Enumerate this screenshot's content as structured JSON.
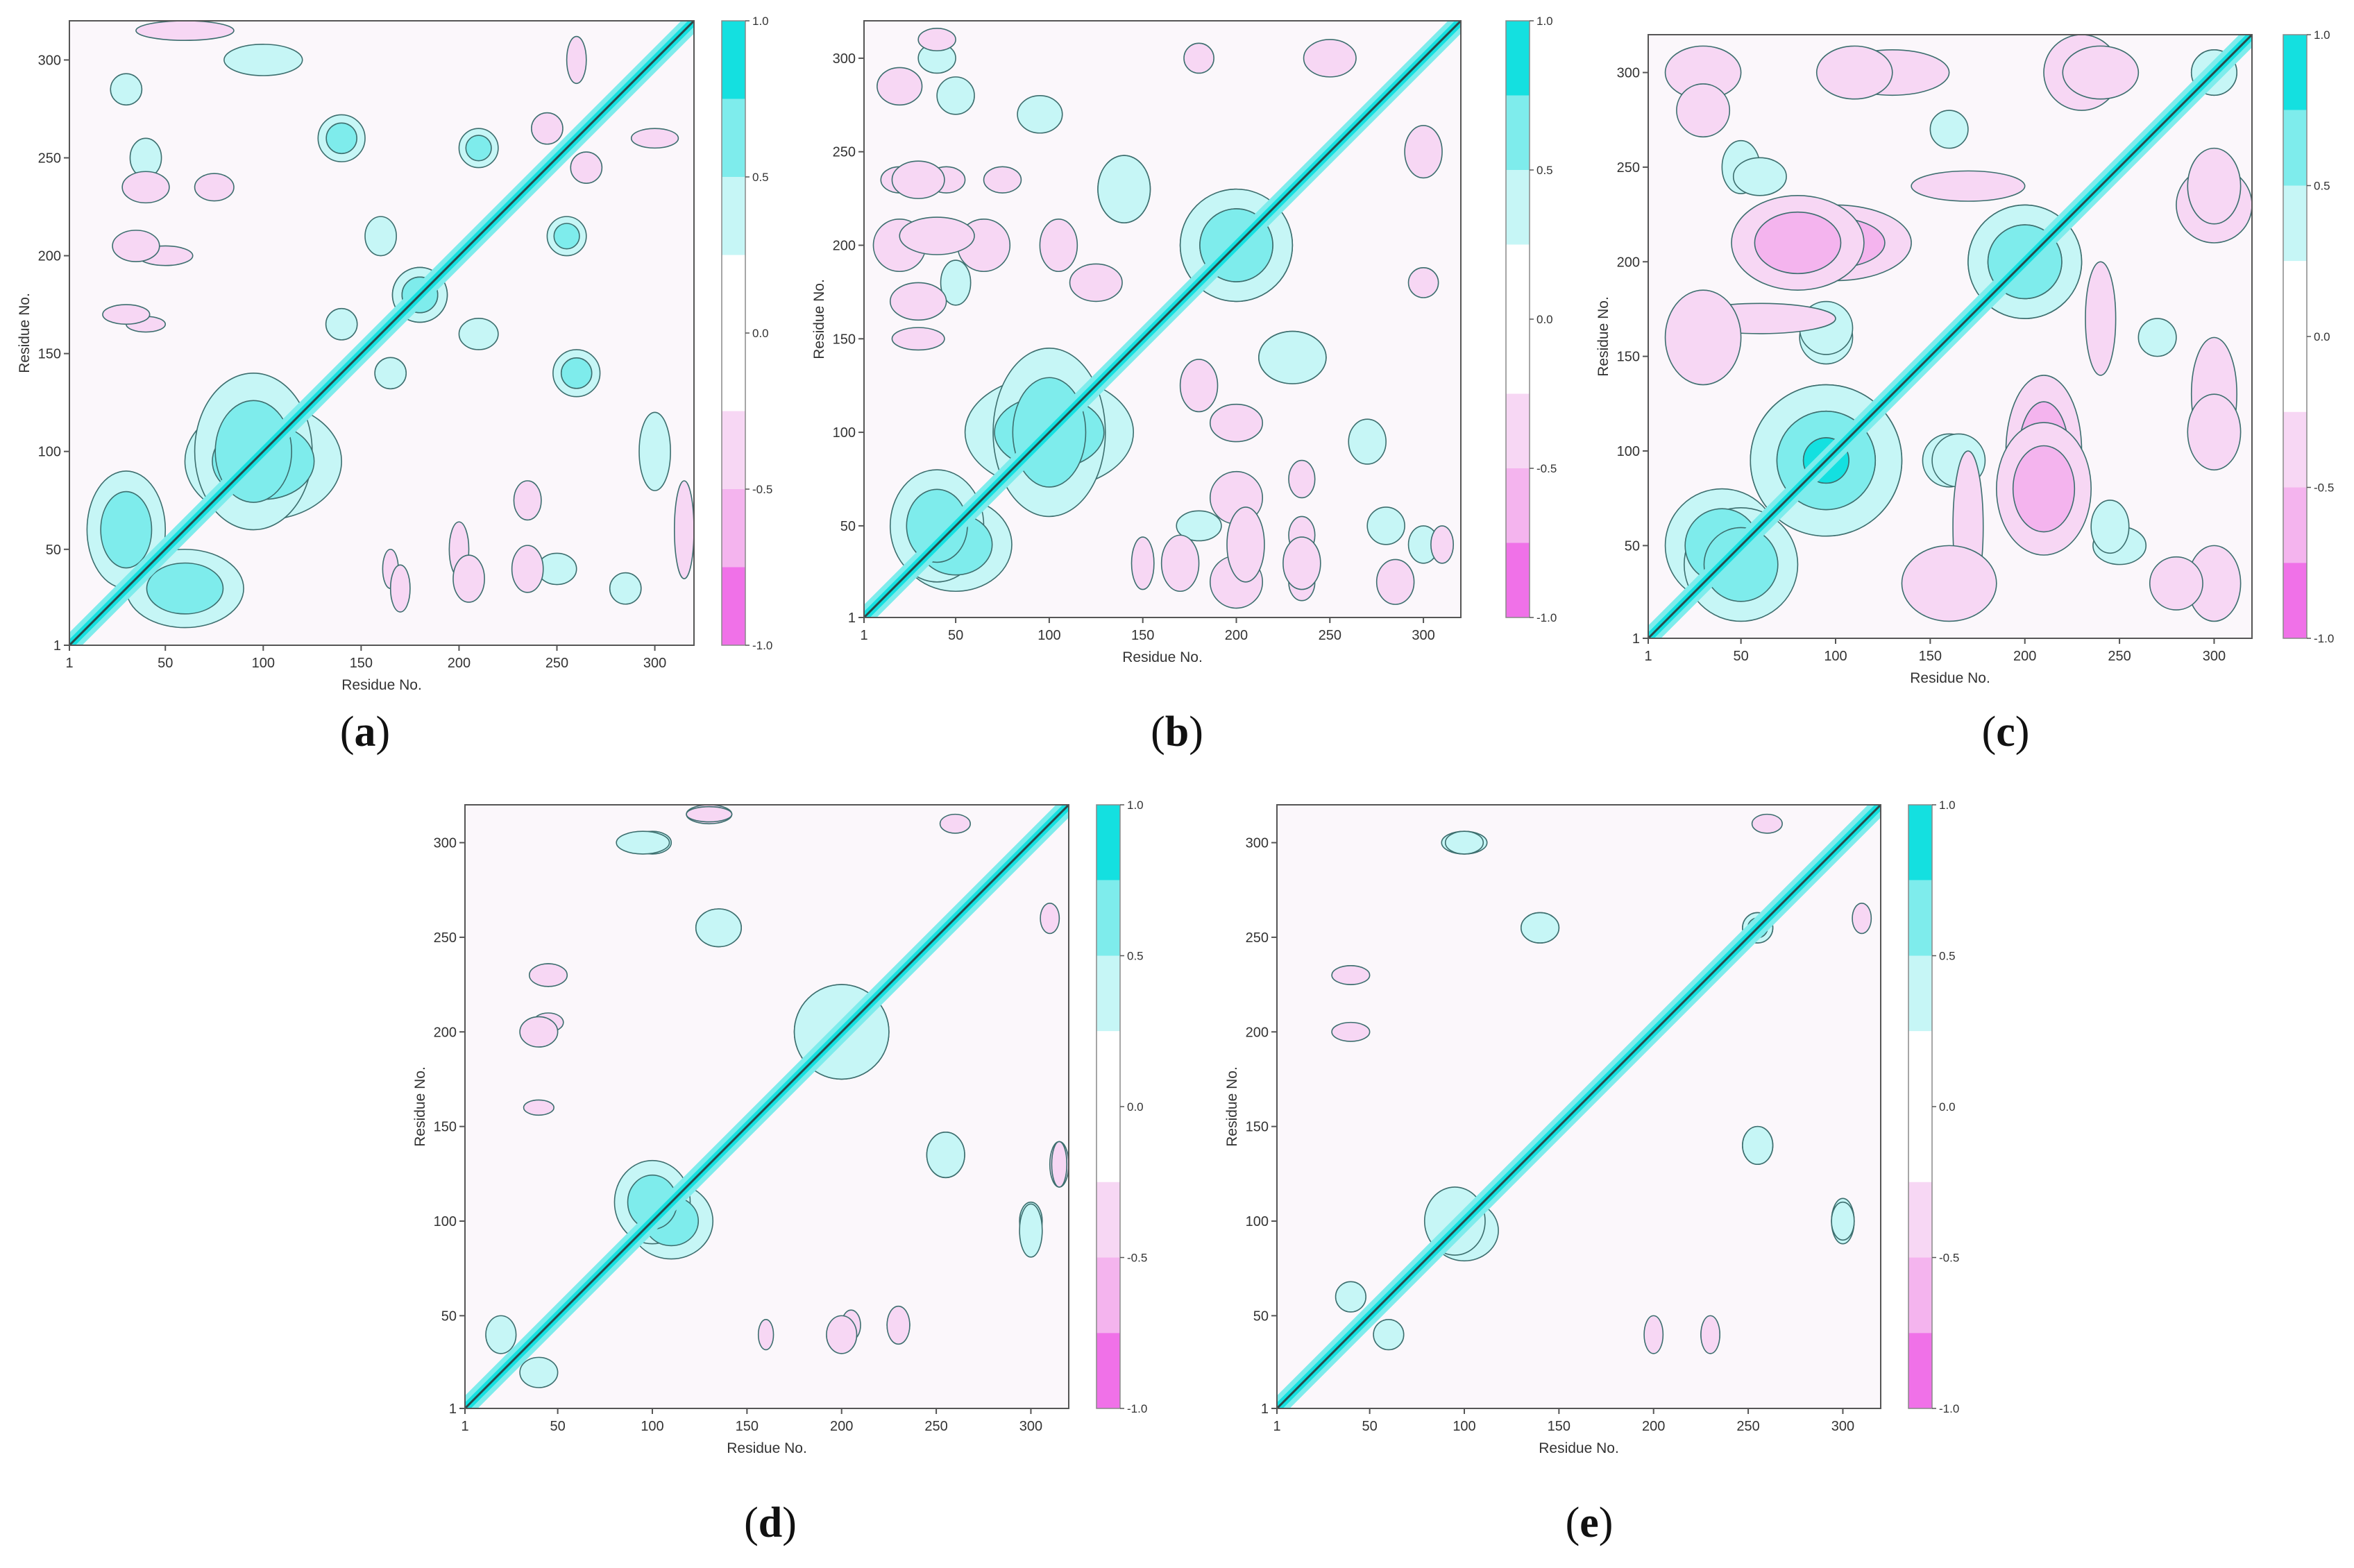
{
  "figure": {
    "panels": [
      {
        "id": "a",
        "label_open": "(",
        "label_letter": "a",
        "label_close": ")"
      },
      {
        "id": "b",
        "label_open": "(",
        "label_letter": "b",
        "label_close": ")"
      },
      {
        "id": "c",
        "label_open": "(",
        "label_letter": "c",
        "label_close": ")"
      },
      {
        "id": "d",
        "label_open": "(",
        "label_letter": "d",
        "label_close": ")"
      },
      {
        "id": "e",
        "label_open": "(",
        "label_letter": "e",
        "label_close": ")"
      }
    ]
  },
  "colors": {
    "cyan_strong": "#14e0e0",
    "cyan_mid": "#7eecec",
    "cyan_light": "#c6f6f6",
    "neutral": "#fbf7fb",
    "pink_light": "#f7d7f4",
    "pink_mid": "#f4b4ee",
    "pink_strong": "#f071e8",
    "contour": "#3c6e6e",
    "diagonal": "#2a4a4a"
  },
  "chart_data": [
    {
      "panel": "a",
      "type": "heatmap",
      "title": "",
      "xlabel": "Residue No.",
      "ylabel": "Residue No.",
      "xlim": [
        1,
        320
      ],
      "ylim": [
        1,
        320
      ],
      "xticks": [
        "1",
        "50",
        "100",
        "150",
        "200",
        "250",
        "300"
      ],
      "yticks": [
        "1",
        "50",
        "100",
        "150",
        "200",
        "250",
        "300"
      ],
      "colorbar": {
        "range": [
          -1.0,
          1.0
        ],
        "tick_labels": [
          "1.0",
          "0.5",
          "0.0",
          "-0.5",
          "-1.0"
        ]
      },
      "positive_regions": [
        {
          "x": 100,
          "y": 95,
          "rx": 40,
          "ry": 30,
          "level": 2
        },
        {
          "x": 60,
          "y": 30,
          "rx": 30,
          "ry": 20,
          "level": 2
        },
        {
          "x": 180,
          "y": 180,
          "rx": 14,
          "ry": 14,
          "level": 3
        },
        {
          "x": 210,
          "y": 255,
          "rx": 10,
          "ry": 10,
          "level": 2
        },
        {
          "x": 260,
          "y": 140,
          "rx": 12,
          "ry": 12,
          "level": 2
        },
        {
          "x": 300,
          "y": 100,
          "rx": 8,
          "ry": 20,
          "level": 1
        },
        {
          "x": 30,
          "y": 285,
          "rx": 8,
          "ry": 8,
          "level": 1
        },
        {
          "x": 250,
          "y": 40,
          "rx": 10,
          "ry": 8,
          "level": 1
        },
        {
          "x": 160,
          "y": 210,
          "rx": 8,
          "ry": 10,
          "level": 1
        },
        {
          "x": 140,
          "y": 165,
          "rx": 8,
          "ry": 8,
          "level": 1
        }
      ],
      "negative_regions": [
        {
          "x": 40,
          "y": 235,
          "rx": 10,
          "ry": 7,
          "level": 1
        },
        {
          "x": 75,
          "y": 235,
          "rx": 10,
          "ry": 7,
          "level": 1
        },
        {
          "x": 50,
          "y": 200,
          "rx": 14,
          "ry": 5,
          "level": 1
        },
        {
          "x": 40,
          "y": 165,
          "rx": 10,
          "ry": 4,
          "level": 1
        },
        {
          "x": 205,
          "y": 35,
          "rx": 8,
          "ry": 12,
          "level": 1
        },
        {
          "x": 235,
          "y": 40,
          "rx": 8,
          "ry": 12,
          "level": 1
        },
        {
          "x": 170,
          "y": 30,
          "rx": 5,
          "ry": 12,
          "level": 1
        },
        {
          "x": 315,
          "y": 60,
          "rx": 5,
          "ry": 25,
          "level": 1
        },
        {
          "x": 265,
          "y": 245,
          "rx": 8,
          "ry": 8,
          "level": 1
        },
        {
          "x": 300,
          "y": 260,
          "rx": 12,
          "ry": 5,
          "level": 1
        }
      ]
    },
    {
      "panel": "b",
      "type": "heatmap",
      "title": "",
      "xlabel": "Residue No.",
      "ylabel": "Residue No.",
      "xlim": [
        1,
        320
      ],
      "ylim": [
        1,
        320
      ],
      "xticks": [
        "1",
        "50",
        "100",
        "150",
        "200",
        "250",
        "300"
      ],
      "yticks": [
        "1",
        "50",
        "100",
        "150",
        "200",
        "250",
        "300"
      ],
      "colorbar": {
        "range": [
          -1.0,
          1.0
        ],
        "tick_labels": [
          "1.0",
          "0.5",
          "0.0",
          "-0.5",
          "-1.0"
        ]
      },
      "positive_regions": [
        {
          "x": 100,
          "y": 100,
          "rx": 45,
          "ry": 30,
          "level": 2
        },
        {
          "x": 50,
          "y": 40,
          "rx": 30,
          "ry": 25,
          "level": 2
        },
        {
          "x": 200,
          "y": 200,
          "rx": 30,
          "ry": 30,
          "level": 2
        },
        {
          "x": 230,
          "y": 140,
          "rx": 18,
          "ry": 14,
          "level": 1
        },
        {
          "x": 140,
          "y": 230,
          "rx": 14,
          "ry": 18,
          "level": 1
        },
        {
          "x": 270,
          "y": 95,
          "rx": 10,
          "ry": 12,
          "level": 1
        },
        {
          "x": 180,
          "y": 50,
          "rx": 12,
          "ry": 8,
          "level": 1
        },
        {
          "x": 280,
          "y": 50,
          "rx": 10,
          "ry": 10,
          "level": 1
        },
        {
          "x": 40,
          "y": 300,
          "rx": 10,
          "ry": 8,
          "level": 1
        }
      ],
      "negative_regions": [
        {
          "x": 20,
          "y": 200,
          "rx": 14,
          "ry": 14,
          "level": 1
        },
        {
          "x": 65,
          "y": 200,
          "rx": 14,
          "ry": 14,
          "level": 1
        },
        {
          "x": 105,
          "y": 200,
          "rx": 10,
          "ry": 14,
          "level": 1
        },
        {
          "x": 20,
          "y": 235,
          "rx": 10,
          "ry": 7,
          "level": 1
        },
        {
          "x": 45,
          "y": 235,
          "rx": 10,
          "ry": 7,
          "level": 1
        },
        {
          "x": 75,
          "y": 235,
          "rx": 10,
          "ry": 7,
          "level": 1
        },
        {
          "x": 170,
          "y": 30,
          "rx": 10,
          "ry": 15,
          "level": 1
        },
        {
          "x": 205,
          "y": 40,
          "rx": 10,
          "ry": 20,
          "level": 1
        },
        {
          "x": 235,
          "y": 30,
          "rx": 10,
          "ry": 14,
          "level": 1
        },
        {
          "x": 285,
          "y": 20,
          "rx": 10,
          "ry": 12,
          "level": 1
        },
        {
          "x": 180,
          "y": 125,
          "rx": 10,
          "ry": 14,
          "level": 1
        },
        {
          "x": 300,
          "y": 250,
          "rx": 10,
          "ry": 14,
          "level": 1
        },
        {
          "x": 30,
          "y": 150,
          "rx": 14,
          "ry": 6,
          "level": 1
        },
        {
          "x": 40,
          "y": 310,
          "rx": 10,
          "ry": 6,
          "level": 1
        },
        {
          "x": 180,
          "y": 300,
          "rx": 8,
          "ry": 8,
          "level": 1
        }
      ]
    },
    {
      "panel": "c",
      "type": "heatmap",
      "title": "",
      "xlabel": "Residue No.",
      "ylabel": "Residue No.",
      "xlim": [
        1,
        320
      ],
      "ylim": [
        1,
        320
      ],
      "xticks": [
        "1",
        "50",
        "100",
        "150",
        "200",
        "250",
        "300"
      ],
      "yticks": [
        "1",
        "50",
        "100",
        "150",
        "200",
        "250",
        "300"
      ],
      "colorbar": {
        "range": [
          -1.0,
          1.0
        ],
        "tick_labels": [
          "1.0",
          "0.5",
          "0.0",
          "-0.5",
          "-1.0"
        ]
      },
      "positive_regions": [
        {
          "x": 95,
          "y": 95,
          "rx": 40,
          "ry": 40,
          "level": 3
        },
        {
          "x": 200,
          "y": 200,
          "rx": 30,
          "ry": 30,
          "level": 2
        },
        {
          "x": 40,
          "y": 50,
          "rx": 30,
          "ry": 30,
          "level": 2
        },
        {
          "x": 160,
          "y": 95,
          "rx": 14,
          "ry": 14,
          "level": 1
        },
        {
          "x": 95,
          "y": 165,
          "rx": 14,
          "ry": 14,
          "level": 1
        },
        {
          "x": 250,
          "y": 50,
          "rx": 14,
          "ry": 10,
          "level": 1
        },
        {
          "x": 60,
          "y": 245,
          "rx": 14,
          "ry": 10,
          "level": 1
        },
        {
          "x": 270,
          "y": 160,
          "rx": 10,
          "ry": 10,
          "level": 1
        },
        {
          "x": 300,
          "y": 300,
          "rx": 12,
          "ry": 12,
          "level": 1
        }
      ],
      "negative_regions": [
        {
          "x": 100,
          "y": 210,
          "rx": 40,
          "ry": 20,
          "level": 2
        },
        {
          "x": 60,
          "y": 170,
          "rx": 40,
          "ry": 8,
          "level": 1
        },
        {
          "x": 210,
          "y": 80,
          "rx": 25,
          "ry": 35,
          "level": 2
        },
        {
          "x": 160,
          "y": 30,
          "rx": 25,
          "ry": 20,
          "level": 1
        },
        {
          "x": 300,
          "y": 230,
          "rx": 20,
          "ry": 20,
          "level": 1
        },
        {
          "x": 30,
          "y": 300,
          "rx": 20,
          "ry": 14,
          "level": 1
        },
        {
          "x": 130,
          "y": 300,
          "rx": 30,
          "ry": 12,
          "level": 1
        },
        {
          "x": 240,
          "y": 300,
          "rx": 20,
          "ry": 14,
          "level": 1
        },
        {
          "x": 300,
          "y": 110,
          "rx": 14,
          "ry": 20,
          "level": 1
        },
        {
          "x": 280,
          "y": 30,
          "rx": 14,
          "ry": 14,
          "level": 1
        },
        {
          "x": 170,
          "y": 240,
          "rx": 30,
          "ry": 8,
          "level": 1
        }
      ]
    },
    {
      "panel": "d",
      "type": "heatmap",
      "title": "",
      "xlabel": "Residue No.",
      "ylabel": "Residue No.",
      "xlim": [
        1,
        320
      ],
      "ylim": [
        1,
        320
      ],
      "xticks": [
        "1",
        "50",
        "100",
        "150",
        "200",
        "250",
        "300"
      ],
      "yticks": [
        "1",
        "50",
        "100",
        "150",
        "200",
        "250",
        "300"
      ],
      "colorbar": {
        "range": [
          -1.0,
          1.0
        ],
        "tick_labels": [
          "1.0",
          "0.5",
          "0.0",
          "-0.5",
          "-1.0"
        ]
      },
      "positive_regions": [
        {
          "x": 110,
          "y": 100,
          "rx": 22,
          "ry": 20,
          "level": 2
        },
        {
          "x": 200,
          "y": 200,
          "rx": 25,
          "ry": 25,
          "level": 1
        },
        {
          "x": 255,
          "y": 135,
          "rx": 10,
          "ry": 12,
          "level": 1
        },
        {
          "x": 135,
          "y": 255,
          "rx": 12,
          "ry": 10,
          "level": 1
        },
        {
          "x": 100,
          "y": 300,
          "rx": 10,
          "ry": 6,
          "level": 1
        },
        {
          "x": 300,
          "y": 95,
          "rx": 6,
          "ry": 14,
          "level": 1
        },
        {
          "x": 20,
          "y": 40,
          "rx": 8,
          "ry": 10,
          "level": 1
        }
      ],
      "negative_regions": [
        {
          "x": 45,
          "y": 230,
          "rx": 8,
          "ry": 6,
          "level": 1
        },
        {
          "x": 45,
          "y": 205,
          "rx": 8,
          "ry": 5,
          "level": 1
        },
        {
          "x": 200,
          "y": 40,
          "rx": 8,
          "ry": 10,
          "level": 1
        },
        {
          "x": 230,
          "y": 45,
          "rx": 6,
          "ry": 10,
          "level": 1
        },
        {
          "x": 160,
          "y": 40,
          "rx": 4,
          "ry": 8,
          "level": 1
        },
        {
          "x": 315,
          "y": 130,
          "rx": 5,
          "ry": 12,
          "level": 1
        },
        {
          "x": 130,
          "y": 315,
          "rx": 12,
          "ry": 4,
          "level": 1
        },
        {
          "x": 310,
          "y": 260,
          "rx": 5,
          "ry": 8,
          "level": 1
        }
      ]
    },
    {
      "panel": "e",
      "type": "heatmap",
      "title": "",
      "xlabel": "Residue No.",
      "ylabel": "Residue No.",
      "xlim": [
        1,
        320
      ],
      "ylim": [
        1,
        320
      ],
      "xticks": [
        "1",
        "50",
        "100",
        "150",
        "200",
        "250",
        "300"
      ],
      "yticks": [
        "1",
        "50",
        "100",
        "150",
        "200",
        "250",
        "300"
      ],
      "colorbar": {
        "range": [
          -1.0,
          1.0
        ],
        "tick_labels": [
          "1.0",
          "0.5",
          "0.0",
          "-0.5",
          "-1.0"
        ]
      },
      "positive_regions": [
        {
          "x": 100,
          "y": 95,
          "rx": 18,
          "ry": 16,
          "level": 1
        },
        {
          "x": 255,
          "y": 140,
          "rx": 8,
          "ry": 10,
          "level": 1
        },
        {
          "x": 140,
          "y": 255,
          "rx": 10,
          "ry": 8,
          "level": 1
        },
        {
          "x": 300,
          "y": 100,
          "rx": 6,
          "ry": 12,
          "level": 1
        },
        {
          "x": 100,
          "y": 300,
          "rx": 10,
          "ry": 6,
          "level": 1
        },
        {
          "x": 60,
          "y": 40,
          "rx": 8,
          "ry": 8,
          "level": 1
        },
        {
          "x": 255,
          "y": 255,
          "rx": 8,
          "ry": 8,
          "level": 2
        }
      ],
      "negative_regions": [
        {
          "x": 40,
          "y": 230,
          "rx": 8,
          "ry": 5,
          "level": 1
        },
        {
          "x": 40,
          "y": 200,
          "rx": 8,
          "ry": 4,
          "level": 1
        },
        {
          "x": 200,
          "y": 40,
          "rx": 5,
          "ry": 10,
          "level": 1
        },
        {
          "x": 230,
          "y": 40,
          "rx": 5,
          "ry": 10,
          "level": 1
        },
        {
          "x": 310,
          "y": 260,
          "rx": 5,
          "ry": 8,
          "level": 1
        }
      ]
    }
  ]
}
